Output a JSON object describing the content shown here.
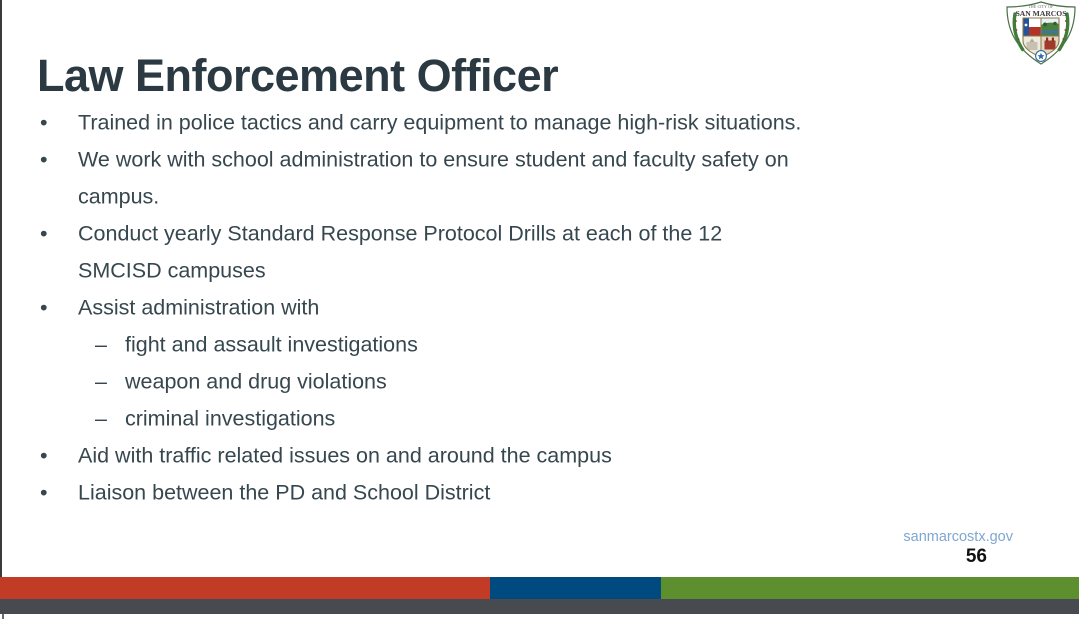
{
  "slide": {
    "title": "Law Enforcement Officer",
    "markers": {
      "bullet": "•",
      "dash": "–"
    },
    "bullets": [
      {
        "style": "bullet",
        "text": "Trained in police tactics and carry equipment to manage high-risk situations."
      },
      {
        "style": "bullet",
        "text": "We work with school administration to ensure student and faculty safety on"
      },
      {
        "style": "cont",
        "text": "campus."
      },
      {
        "style": "bullet",
        "text": "Conduct yearly Standard Response Protocol Drills at each of the 12"
      },
      {
        "style": "cont",
        "text": "SMCISD campuses"
      },
      {
        "style": "bullet",
        "text": "Assist administration with"
      },
      {
        "style": "dash",
        "text": "fight and assault investigations"
      },
      {
        "style": "dash",
        "text": "weapon and drug violations"
      },
      {
        "style": "dash",
        "text": "criminal investigations"
      },
      {
        "style": "bullet",
        "text": "Aid with traffic related issues on and around the campus"
      },
      {
        "style": "bullet",
        "text": "Liaison between the PD and School District"
      }
    ],
    "footer_link": "sanmarcostx.gov",
    "page_number": "56"
  },
  "logo": {
    "name": "City of San Marcos seal",
    "text_top": "THE CITY OF",
    "text_name": "SAN MARCOS"
  },
  "colors": {
    "title": "#2B3A42",
    "body": "#37474F",
    "link": "#7EA6D2",
    "bar_red": "#C13B26",
    "bar_blue": "#004A7F",
    "bar_green": "#5E8F2F",
    "gap_gray": "#474B4F"
  }
}
